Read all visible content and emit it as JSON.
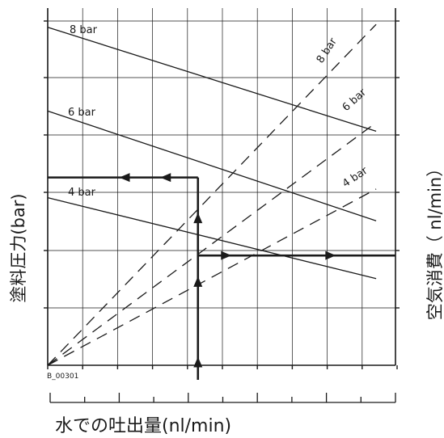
{
  "chart_data": {
    "type": "line",
    "figure_id": "B_00301",
    "ylabel": "塗料圧力(bar)",
    "ylabel_right": "空気消費（ nl/min）",
    "xlabel": "水での吐出量(nl/min)",
    "grid": true,
    "axis_tick_values_shown": false,
    "paint_pressure_lines": [
      {
        "name": "8 bar",
        "points": [
          [
            0,
            5.85
          ],
          [
            9.4,
            4.05
          ]
        ]
      },
      {
        "name": "6 bar",
        "points": [
          [
            0,
            4.4
          ],
          [
            9.4,
            2.5
          ]
        ]
      },
      {
        "name": "4 bar",
        "points": [
          [
            0,
            2.9
          ],
          [
            9.4,
            1.5
          ]
        ]
      }
    ],
    "air_consumption_lines": [
      {
        "name": "8 bar",
        "points": [
          [
            0,
            0
          ],
          [
            9.4,
            5.9
          ]
        ]
      },
      {
        "name": "6 bar",
        "points": [
          [
            0,
            0
          ],
          [
            9.4,
            4.2
          ]
        ]
      },
      {
        "name": "4 bar",
        "points": [
          [
            0,
            0
          ],
          [
            9.4,
            3.05
          ]
        ]
      }
    ],
    "example_path": {
      "color": "#1a1a1a",
      "points": [
        [
          4.3,
          -0.6
        ],
        [
          4.3,
          3.25
        ],
        [
          4.3,
          1.0
        ],
        [
          4.3,
          1.9
        ],
        [
          9.95,
          1.9
        ],
        [
          4.3,
          1.9
        ],
        [
          4.3,
          3.25
        ],
        [
          0,
          3.25
        ]
      ]
    }
  }
}
